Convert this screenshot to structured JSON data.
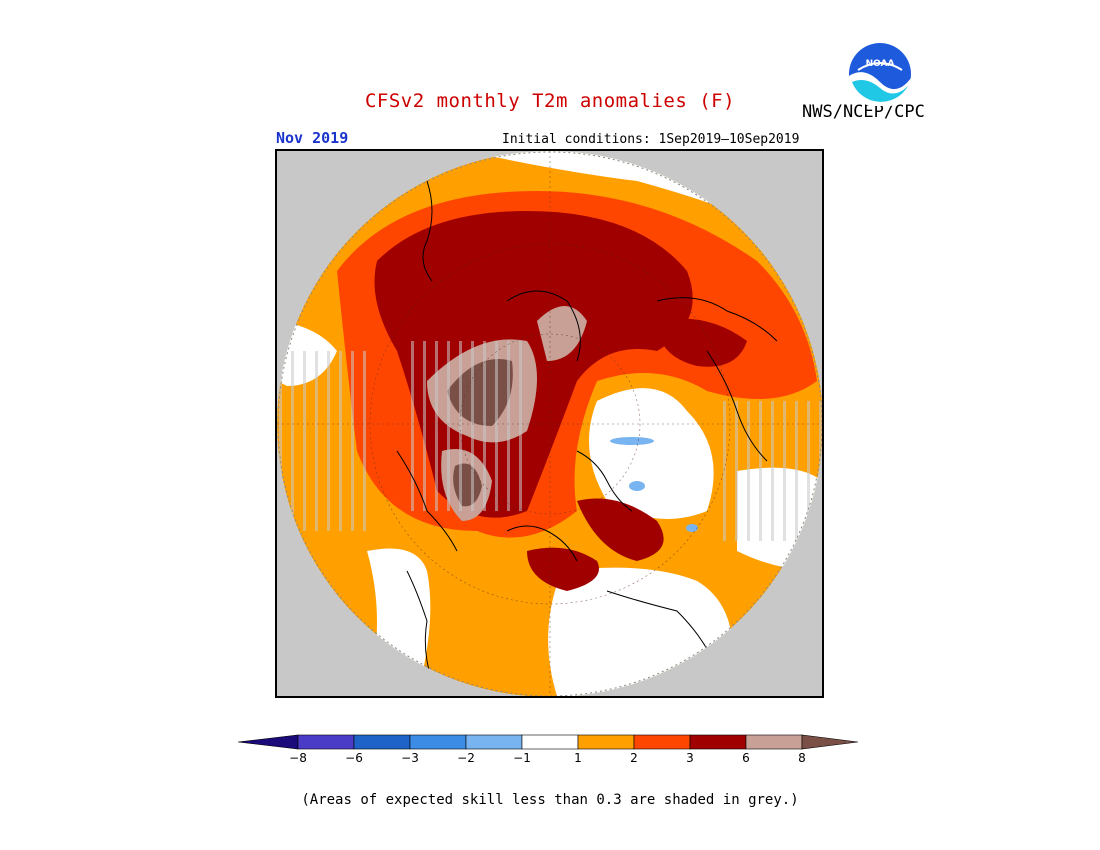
{
  "header": {
    "title": "CFSv2 monthly T2m anomalies (F)",
    "month": "Nov 2019",
    "initial_conditions": "Initial conditions: 1Sep2019–10Sep2019",
    "agency": "NWS/NCEP/CPC",
    "logo_text": "NOAA"
  },
  "map": {
    "projection": "north-polar-stereographic",
    "outside_color": "#c8c8c8",
    "low_skill_color": "#c8c8c8"
  },
  "colorbar": {
    "labels": [
      "−8",
      "−6",
      "−3",
      "−2",
      "−1",
      "1",
      "2",
      "3",
      "6",
      "8"
    ],
    "colors": [
      "#1a0a7a",
      "#4b3cc7",
      "#1e64c8",
      "#3c8ce6",
      "#78b4f0",
      "#ffffff",
      "#ffa000",
      "#ff4600",
      "#a00000",
      "#c8a096",
      "#7a5046"
    ],
    "bins": [
      {
        "range": "< -8",
        "color": "#1a0a7a"
      },
      {
        "range": "-8 to -6",
        "color": "#4b3cc7"
      },
      {
        "range": "-6 to -3",
        "color": "#1e64c8"
      },
      {
        "range": "-3 to -2",
        "color": "#3c8ce6"
      },
      {
        "range": "-2 to -1",
        "color": "#78b4f0"
      },
      {
        "range": "-1 to 1",
        "color": "#ffffff"
      },
      {
        "range": "1 to 2",
        "color": "#ffa000"
      },
      {
        "range": "2 to 3",
        "color": "#ff4600"
      },
      {
        "range": "3 to 6",
        "color": "#a00000"
      },
      {
        "range": "6 to 8",
        "color": "#c8a096"
      },
      {
        "range": "> 8",
        "color": "#7a5046"
      }
    ]
  },
  "footnote": "(Areas of expected skill less than 0.3 are shaded in grey.)"
}
